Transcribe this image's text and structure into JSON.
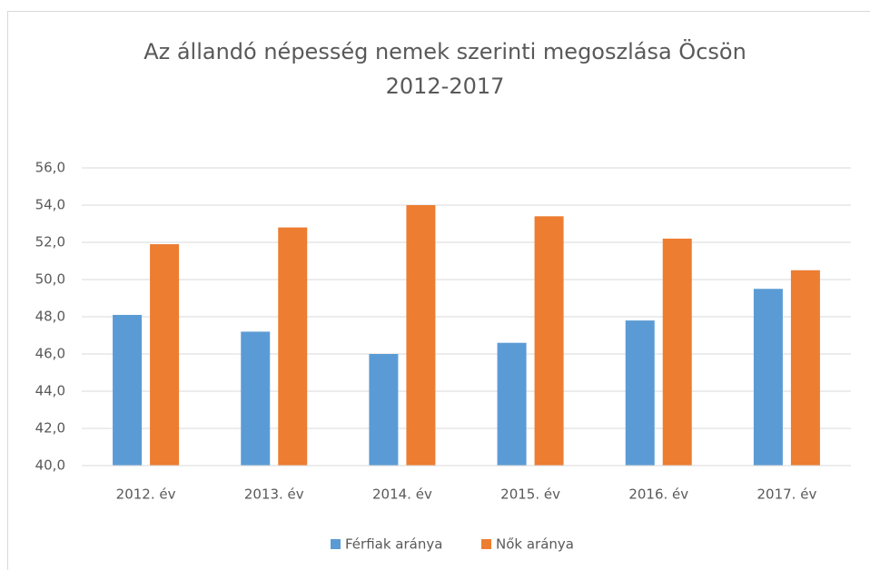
{
  "chart_data": {
    "type": "bar",
    "title": [
      "Az állandó népesség nemek szerinti megoszlása Öcsön",
      "2012-2017"
    ],
    "categories": [
      "2012. év",
      "2013. év",
      "2014. év",
      "2015. év",
      "2016. év",
      "2017. év"
    ],
    "series": [
      {
        "name": "Férfiak aránya",
        "color": "#5b9bd5",
        "values": [
          48.1,
          47.2,
          46.0,
          46.6,
          47.8,
          49.5
        ]
      },
      {
        "name": "Nők aránya",
        "color": "#ed7d31",
        "values": [
          51.9,
          52.8,
          54.0,
          53.4,
          52.2,
          50.5
        ]
      }
    ],
    "ylim": [
      40,
      56
    ],
    "yticks": [
      {
        "value": 40,
        "label": "40,0"
      },
      {
        "value": 42,
        "label": "42,0"
      },
      {
        "value": 44,
        "label": "44,0"
      },
      {
        "value": 46,
        "label": "46,0"
      },
      {
        "value": 48,
        "label": "48,0"
      },
      {
        "value": 50,
        "label": "50,0"
      },
      {
        "value": 52,
        "label": "52,0"
      },
      {
        "value": 54,
        "label": "54,0"
      },
      {
        "value": 56,
        "label": "56,0"
      }
    ],
    "grid": true,
    "legend": "bottom"
  }
}
